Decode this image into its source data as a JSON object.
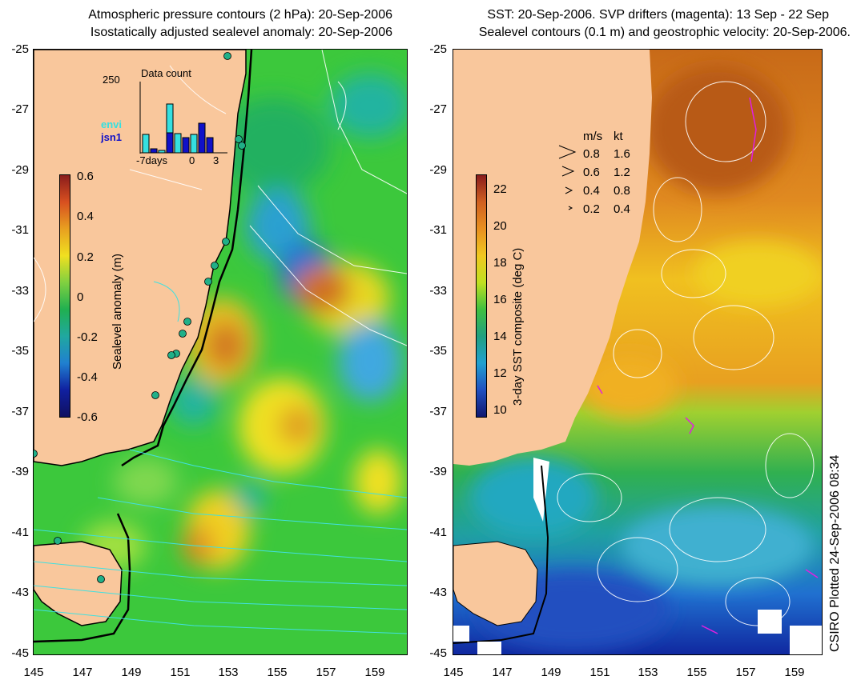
{
  "left_panel": {
    "title_line1": "Atmospheric pressure contours (2 hPa): 20-Sep-2006",
    "title_line2": "Isostatically adjusted sealevel anomaly: 20-Sep-2006",
    "colorbar_label": "Sealevel anomaly (m)",
    "colorbar_ticks": [
      "0.6",
      "0.4",
      "0.2",
      "0",
      "-0.2",
      "-0.4",
      "-0.6"
    ],
    "inset": {
      "title": "Data count",
      "ymax_label": "250",
      "x_ticks": [
        "-7days",
        "0",
        "3"
      ],
      "legend": [
        {
          "label": "envi",
          "color": "#35e0e0"
        },
        {
          "label": "jsn1",
          "color": "#1010c8"
        }
      ]
    }
  },
  "right_panel": {
    "title_line1": "SST: 20-Sep-2006. SVP drifters (magenta): 13 Sep - 22 Sep",
    "title_line2": "Sealevel contours (0.1 m) and geostrophic velocity: 20-Sep-2006.",
    "colorbar_label": "3-day SST composite (deg C)",
    "colorbar_ticks": [
      "22",
      "20",
      "18",
      "16",
      "14",
      "12",
      "10"
    ],
    "velocity_legend": {
      "header": [
        "m/s",
        "kt"
      ],
      "rows": [
        [
          "0.8",
          "1.6"
        ],
        [
          "0.6",
          "1.2"
        ],
        [
          "0.4",
          "0.8"
        ],
        [
          "0.2",
          "0.4"
        ]
      ]
    }
  },
  "y_ticks": [
    "-25",
    "-27",
    "-29",
    "-31",
    "-33",
    "-35",
    "-37",
    "-39",
    "-41",
    "-43",
    "-45"
  ],
  "x_ticks": [
    "145",
    "147",
    "149",
    "151",
    "153",
    "155",
    "157",
    "159"
  ],
  "footer": "CSIRO Plotted 24-Sep-2006 08:34",
  "colors": {
    "land": "#f9c79c",
    "sea_green": "#3cc83c",
    "coast": "#000000",
    "contour": "#ffffff"
  }
}
